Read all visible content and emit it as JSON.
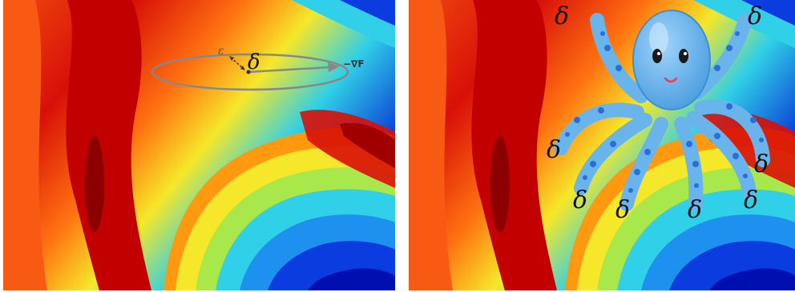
{
  "left_panel": {
    "delta_symbol": "δ",
    "epsilon_symbol": "ε",
    "gradient_label": "−∇F"
  },
  "right_panel": {
    "octopus_symbols": [
      "δ",
      "δ",
      "δ",
      "δ",
      "δ",
      "δ",
      "δ",
      "δ"
    ]
  },
  "colors": {
    "dark_red": "#b00000",
    "red": "#e8170f",
    "orange": "#ff8000",
    "yellow": "#f5f01e",
    "cyan": "#23c8f0",
    "blue": "#0023e6",
    "octopus_body": "#6ab4ec",
    "octopus_spots": "#2a6fd8",
    "trajectory": "#888888"
  }
}
